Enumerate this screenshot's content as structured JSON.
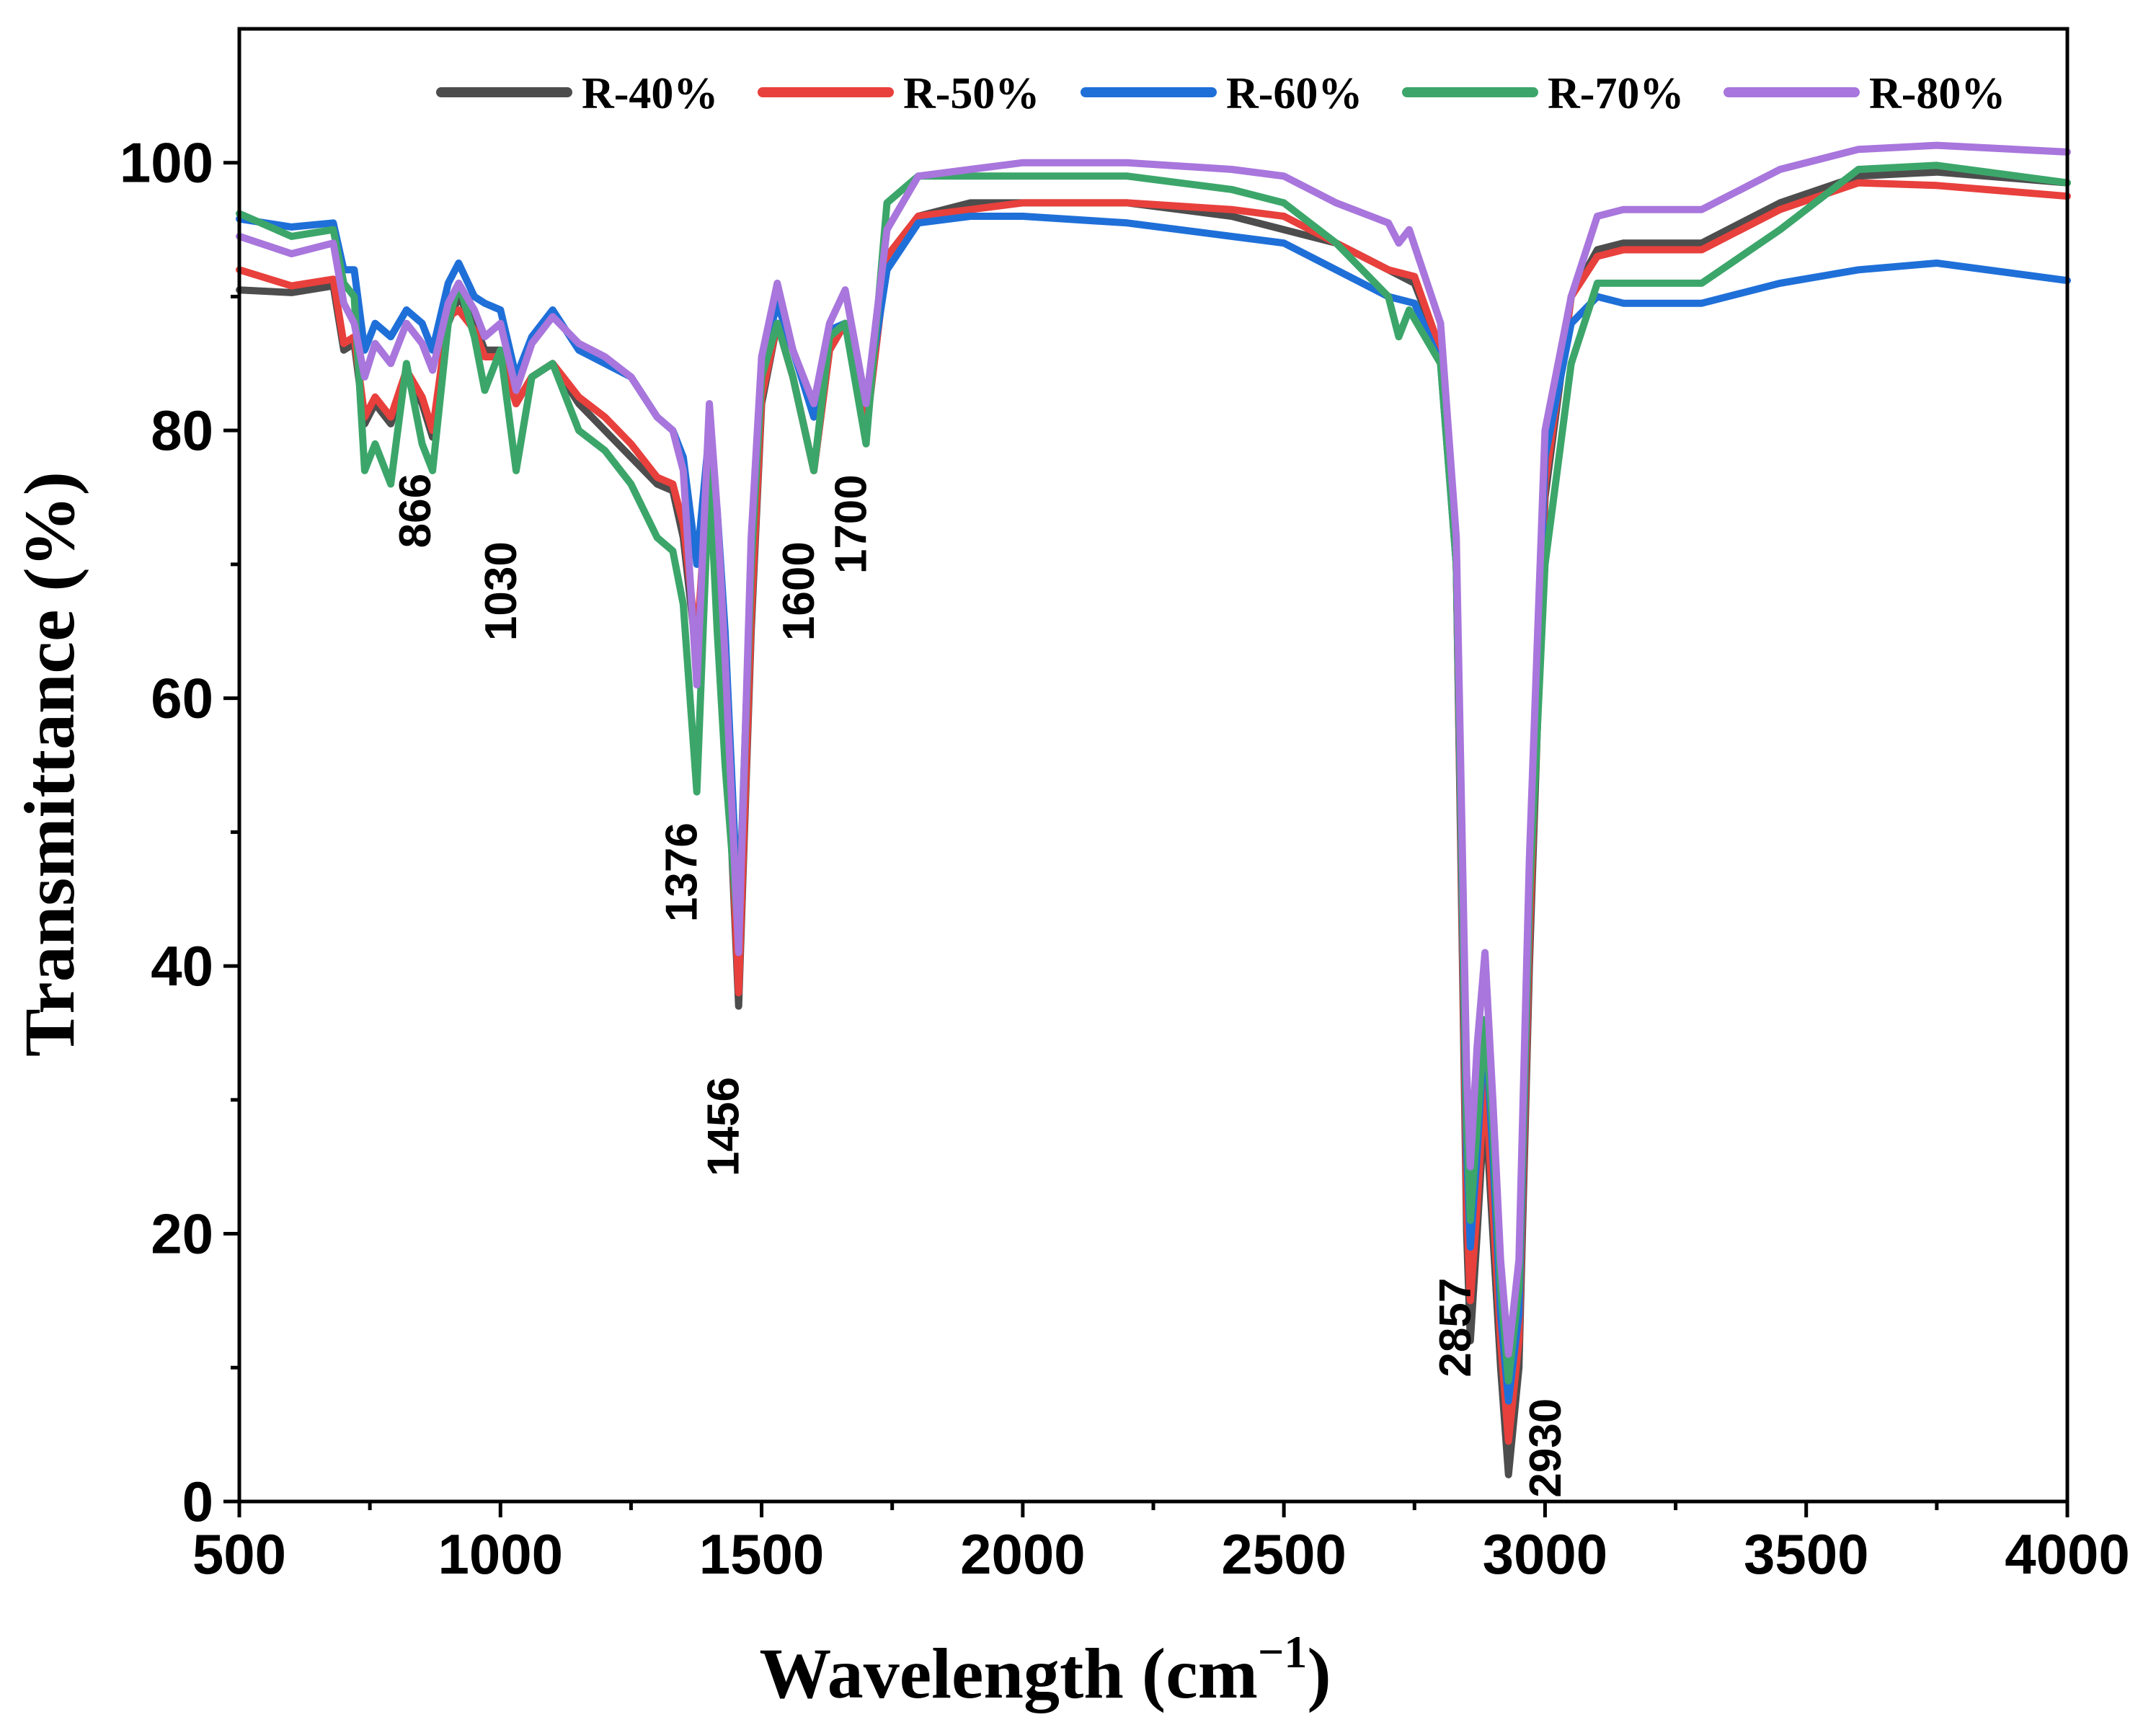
{
  "chart_data": {
    "type": "line",
    "title": "",
    "xlabel": "Wavelength (cm",
    "xlabel_sup": "−1",
    "xlabel_close": ")",
    "ylabel": "Transmittance (%)",
    "xlim": [
      500,
      4000
    ],
    "ylim": [
      0,
      110
    ],
    "x_ticks": [
      "500",
      "1000",
      "1500",
      "2000",
      "2500",
      "3000",
      "3500",
      "4000"
    ],
    "y_ticks": [
      "0",
      "20",
      "40",
      "60",
      "80",
      "100"
    ],
    "grid": false,
    "legend_position": "top",
    "annotations": [
      {
        "text": "866",
        "x": 866,
        "y": 74
      },
      {
        "text": "1030",
        "x": 1030,
        "y": 68
      },
      {
        "text": "1376",
        "x": 1376,
        "y": 47
      },
      {
        "text": "1456",
        "x": 1456,
        "y": 28
      },
      {
        "text": "1600",
        "x": 1600,
        "y": 68
      },
      {
        "text": "1700",
        "x": 1700,
        "y": 73
      },
      {
        "text": "2857",
        "x": 2857,
        "y": 13
      },
      {
        "text": "2930",
        "x": 3030,
        "y": 4
      }
    ],
    "series": [
      {
        "name": "R-40%",
        "color": "#4d4d4d",
        "x": [
          500,
          600,
          680,
          700,
          720,
          740,
          760,
          790,
          820,
          850,
          870,
          900,
          920,
          950,
          970,
          1000,
          1030,
          1060,
          1100,
          1150,
          1200,
          1250,
          1300,
          1330,
          1350,
          1376,
          1400,
          1415,
          1430,
          1456,
          1480,
          1500,
          1530,
          1560,
          1600,
          1630,
          1660,
          1700,
          1740,
          1800,
          1900,
          2000,
          2200,
          2400,
          2500,
          2600,
          2700,
          2750,
          2800,
          2830,
          2850,
          2857,
          2870,
          2885,
          2900,
          2915,
          2930,
          2950,
          2970,
          3000,
          3050,
          3100,
          3150,
          3300,
          3450,
          3600,
          3750,
          4000
        ],
        "y": [
          90.5,
          90.3,
          90.8,
          86,
          86.5,
          80.5,
          82,
          80.5,
          84,
          82,
          79.5,
          88,
          90,
          88,
          86,
          86,
          82,
          84,
          85,
          82,
          80,
          78,
          76,
          75.5,
          72,
          63,
          78,
          70,
          60,
          37,
          65,
          82,
          88,
          84,
          77,
          86,
          88,
          80,
          93,
          96,
          97,
          97,
          97,
          96,
          95,
          94,
          92,
          91,
          86,
          70,
          20,
          12,
          20,
          30,
          20,
          10,
          2,
          10,
          40,
          75,
          90,
          93.5,
          94,
          94,
          97,
          99,
          99.3,
          98.5
        ]
      },
      {
        "name": "R-50%",
        "color": "#e8403c",
        "x": [
          500,
          600,
          680,
          700,
          720,
          740,
          760,
          790,
          820,
          850,
          870,
          900,
          920,
          950,
          970,
          1000,
          1030,
          1060,
          1100,
          1150,
          1200,
          1250,
          1300,
          1330,
          1350,
          1376,
          1400,
          1415,
          1430,
          1456,
          1480,
          1500,
          1530,
          1560,
          1600,
          1630,
          1660,
          1700,
          1740,
          1800,
          1900,
          2000,
          2200,
          2400,
          2500,
          2600,
          2700,
          2750,
          2800,
          2830,
          2850,
          2857,
          2870,
          2885,
          2900,
          2915,
          2930,
          2950,
          2970,
          3000,
          3050,
          3100,
          3150,
          3300,
          3450,
          3600,
          3750,
          4000
        ],
        "y": [
          92,
          90.8,
          91.3,
          86.5,
          87,
          81,
          82.5,
          81,
          84.5,
          82.5,
          80,
          88.5,
          89,
          87.5,
          85.5,
          85.5,
          82,
          84,
          85,
          82.5,
          81,
          79,
          76.5,
          76,
          73,
          64,
          78,
          71,
          61,
          38,
          66,
          82.5,
          88,
          84,
          77,
          86,
          88,
          80,
          93,
          96,
          96.5,
          97,
          97,
          96.5,
          96,
          94,
          92,
          91.5,
          86,
          70,
          22,
          15,
          22,
          32,
          22,
          12,
          4.5,
          12,
          42,
          76,
          90,
          93,
          93.5,
          93.5,
          96.5,
          98.5,
          98.3,
          97.5
        ]
      },
      {
        "name": "R-60%",
        "color": "#1f6fd8",
        "x": [
          500,
          600,
          680,
          700,
          720,
          740,
          760,
          790,
          820,
          850,
          870,
          900,
          920,
          950,
          970,
          1000,
          1030,
          1060,
          1100,
          1150,
          1200,
          1250,
          1300,
          1330,
          1350,
          1376,
          1400,
          1415,
          1430,
          1456,
          1480,
          1500,
          1530,
          1560,
          1600,
          1630,
          1660,
          1700,
          1740,
          1800,
          1900,
          2000,
          2200,
          2400,
          2500,
          2600,
          2700,
          2750,
          2800,
          2830,
          2850,
          2857,
          2870,
          2885,
          2900,
          2915,
          2930,
          2950,
          2970,
          3000,
          3050,
          3100,
          3150,
          3300,
          3450,
          3600,
          3750,
          4000
        ],
        "y": [
          95.8,
          95.2,
          95.5,
          92,
          92,
          86,
          88,
          87,
          89,
          88,
          86,
          91,
          92.5,
          90,
          89.5,
          89,
          84,
          87,
          89,
          86,
          85,
          84,
          81,
          80,
          78,
          70,
          80,
          74,
          65,
          43,
          70,
          85,
          89.5,
          86,
          81,
          87.5,
          88,
          82,
          92,
          95.5,
          96,
          96,
          95.5,
          94.5,
          94,
          92,
          90,
          89.5,
          85,
          70,
          26,
          19,
          26,
          36,
          26,
          14,
          7.5,
          14,
          45,
          78,
          88,
          90,
          89.5,
          89.5,
          91,
          92,
          92.5,
          91.2
        ]
      },
      {
        "name": "R-70%",
        "color": "#3ca66a",
        "x": [
          500,
          600,
          680,
          700,
          720,
          740,
          760,
          790,
          820,
          850,
          870,
          900,
          920,
          950,
          970,
          1000,
          1030,
          1060,
          1100,
          1150,
          1200,
          1250,
          1300,
          1330,
          1350,
          1376,
          1400,
          1415,
          1430,
          1456,
          1480,
          1500,
          1530,
          1560,
          1600,
          1630,
          1660,
          1700,
          1740,
          1800,
          1900,
          2000,
          2200,
          2400,
          2500,
          2600,
          2700,
          2720,
          2740,
          2800,
          2830,
          2850,
          2857,
          2870,
          2885,
          2900,
          2915,
          2930,
          2950,
          2970,
          3000,
          3050,
          3100,
          3150,
          3300,
          3450,
          3600,
          3750,
          4000
        ],
        "y": [
          96.2,
          94.5,
          95,
          91,
          90,
          77,
          79,
          76,
          85,
          79,
          77,
          88,
          91,
          87,
          83,
          86,
          77,
          84,
          85,
          80,
          78.5,
          76,
          72,
          71,
          67,
          53,
          77,
          65,
          55,
          42,
          70,
          84,
          88,
          84,
          77,
          87,
          88,
          79,
          97,
          99,
          99,
          99,
          99,
          98,
          97,
          94,
          90,
          87,
          89,
          85,
          70,
          28,
          21,
          28,
          36,
          28,
          16,
          9,
          16,
          45,
          70,
          85,
          91,
          91,
          91,
          95,
          99.5,
          99.8,
          98.5
        ]
      },
      {
        "name": "R-80%",
        "color": "#a876dc",
        "x": [
          500,
          600,
          680,
          700,
          720,
          740,
          760,
          790,
          820,
          850,
          870,
          900,
          920,
          950,
          970,
          1000,
          1030,
          1060,
          1100,
          1150,
          1200,
          1250,
          1300,
          1330,
          1350,
          1376,
          1400,
          1415,
          1430,
          1456,
          1480,
          1500,
          1530,
          1560,
          1600,
          1630,
          1660,
          1700,
          1740,
          1800,
          1900,
          2000,
          2200,
          2400,
          2500,
          2600,
          2700,
          2720,
          2740,
          2800,
          2830,
          2850,
          2857,
          2870,
          2885,
          2900,
          2915,
          2930,
          2950,
          2970,
          3000,
          3050,
          3100,
          3150,
          3300,
          3450,
          3600,
          3750,
          4000
        ],
        "y": [
          94.5,
          93.2,
          94,
          89.5,
          88,
          84,
          86.5,
          85,
          88,
          86.5,
          84.5,
          89.5,
          91,
          89,
          87,
          88,
          83,
          86.5,
          88.5,
          86.5,
          85.5,
          84,
          81,
          80,
          77,
          61,
          82,
          74,
          63,
          41,
          72,
          85.5,
          91,
          86,
          82,
          88,
          90.5,
          82,
          95,
          99,
          99.5,
          100,
          100,
          99.5,
          99,
          97,
          95.5,
          94,
          95,
          88,
          72,
          32,
          25,
          34,
          41,
          30,
          18,
          11,
          18,
          48,
          80,
          90,
          96,
          96.5,
          96.5,
          99.5,
          101,
          101.3,
          100.8
        ]
      }
    ]
  }
}
